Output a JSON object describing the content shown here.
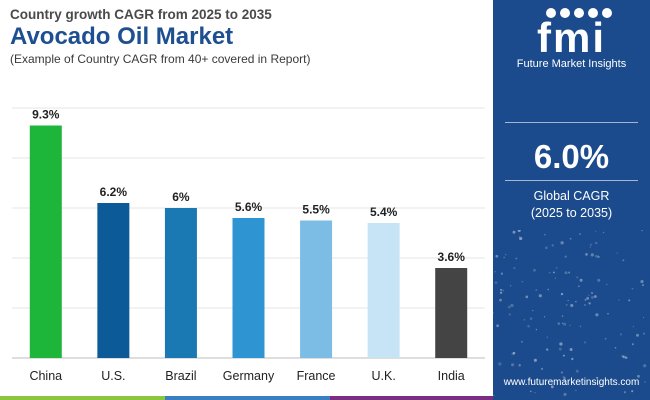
{
  "header": {
    "subtitle": "Country growth CAGR from 2025 to 2035",
    "title": "Avocado Oil Market",
    "caption": "(Example of Country CAGR from 40+ covered in Report)"
  },
  "chart_data": {
    "type": "bar",
    "categories": [
      "China",
      "U.S.",
      "Brazil",
      "Germany",
      "France",
      "U.K.",
      "India"
    ],
    "values": [
      9.3,
      6.2,
      6,
      5.6,
      5.5,
      5.4,
      3.6
    ],
    "value_labels": [
      "9.3%",
      "6.2%",
      "6%",
      "5.6%",
      "5.5%",
      "5.4%",
      "3.6%"
    ],
    "colors": [
      "#1db53a",
      "#0c5a97",
      "#1a78b3",
      "#2f95d2",
      "#7cbde6",
      "#c6e4f6",
      "#444444"
    ],
    "ylim": [
      0,
      10
    ],
    "grid": true,
    "title": "",
    "xlabel": "",
    "ylabel": ""
  },
  "side_panel": {
    "logo_letters": "fmi",
    "logo_text": "Future Market Insights",
    "cagr_value": "6.0%",
    "cagr_label_line1": "Global CAGR",
    "cagr_label_line2": "(2025 to 2035)",
    "website": "www.futuremarketinsights.com",
    "background": "#1b4b8c"
  },
  "footer_colors": [
    "#8cc63f",
    "#3a7fc1",
    "#7b2d83",
    "#1b4b8c"
  ]
}
